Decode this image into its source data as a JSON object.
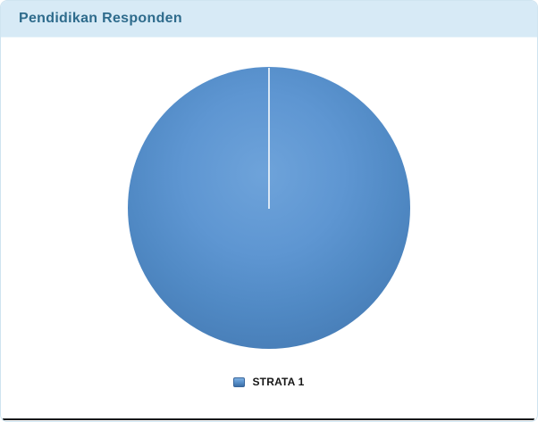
{
  "card": {
    "title": "Pendidikan Responden"
  },
  "chart_data": {
    "type": "pie",
    "title": "Pendidikan Responden",
    "categories": [
      "STRATA 1"
    ],
    "values": [
      100
    ],
    "unit": "percent",
    "slice_colors": [
      "#5b93ce"
    ],
    "slice_gradient": [
      "#6ea3da",
      "#3f72aa"
    ],
    "start_angle_deg": 0,
    "seam_line_color": "#d9e7f5",
    "legend_position": "bottom",
    "data_labels_visible": false
  },
  "legend": {
    "items": [
      {
        "label": "STRATA 1",
        "color": "#5b93ce"
      }
    ]
  },
  "colors": {
    "header_bg": "#d7eaf6",
    "title_text": "#2e6b8c",
    "card_border": "#cfe4f0",
    "body_bg": "#ffffff",
    "legend_text": "#161616",
    "bottom_strip": "#14171a"
  }
}
